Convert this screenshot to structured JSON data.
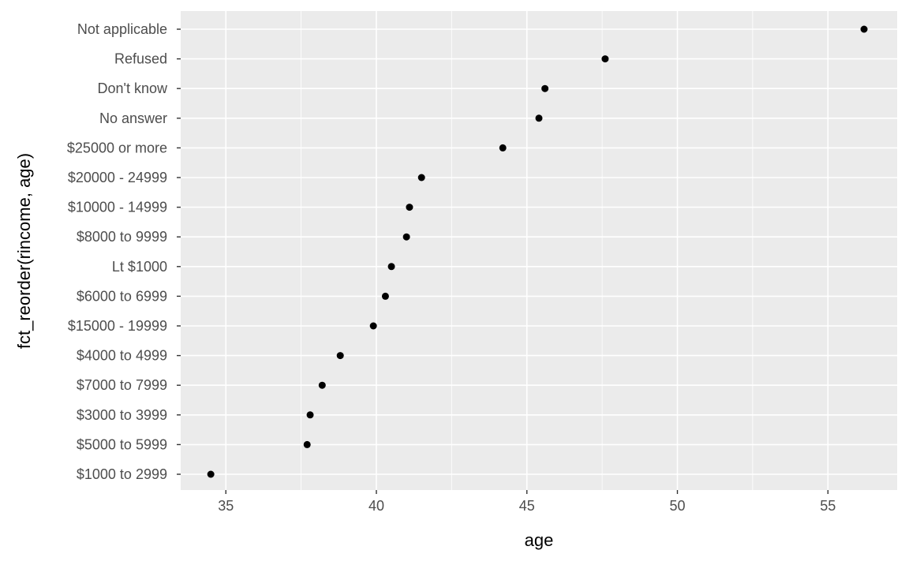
{
  "chart_data": {
    "type": "scatter",
    "title": "",
    "xlabel": "age",
    "ylabel": "fct_reorder(rincome, age)",
    "xlim": [
      33.5,
      57.3
    ],
    "x_ticks": [
      35,
      40,
      45,
      50,
      55
    ],
    "grid": true,
    "background": "#EBEBEB",
    "point_color": "#000000",
    "categories": [
      "Not applicable",
      "Refused",
      "Don't know",
      "No answer",
      "$25000 or more",
      "$20000 - 24999",
      "$10000 - 14999",
      "$8000 to 9999",
      "Lt $1000",
      "$6000 to 6999",
      "$15000 - 19999",
      "$4000 to 4999",
      "$7000 to 7999",
      "$3000 to 3999",
      "$5000 to 5999",
      "$1000 to 2999"
    ],
    "values": [
      56.2,
      47.6,
      45.6,
      45.4,
      44.2,
      41.5,
      41.1,
      41.0,
      40.5,
      40.3,
      39.9,
      38.8,
      38.2,
      37.8,
      37.7,
      34.5
    ]
  }
}
